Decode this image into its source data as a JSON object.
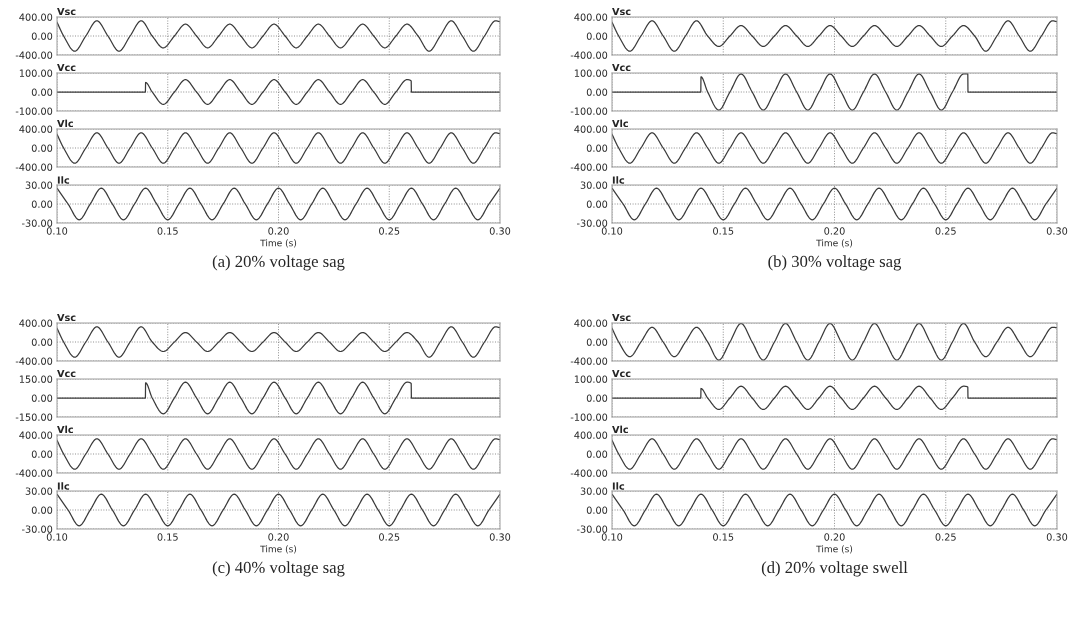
{
  "chart_data": [
    {
      "type": "line",
      "title": "Vsc",
      "tick_labels": "y",
      "grid": true,
      "line_style": "solid",
      "xlim": [
        0.1,
        0.3
      ],
      "xticks": [
        0.1,
        0.15,
        0.2,
        0.25,
        0.3
      ],
      "ylim": [
        -400,
        400
      ],
      "yticks": [
        {
          "value": 400,
          "label": "400.00"
        },
        {
          "value": 0,
          "label": "0.00"
        },
        {
          "value": -400,
          "label": "-400.00"
        }
      ],
      "x": [
        0.1,
        0.103,
        0.108,
        0.113,
        0.118,
        0.123,
        0.128,
        0.133,
        0.138,
        0.143,
        0.148,
        0.153,
        0.158,
        0.163,
        0.168,
        0.173,
        0.178,
        0.183,
        0.188,
        0.193,
        0.198,
        0.203,
        0.208,
        0.213,
        0.218,
        0.223,
        0.228,
        0.233,
        0.238,
        0.243,
        0.248,
        0.253,
        0.258,
        0.263,
        0.268,
        0.273,
        0.278,
        0.283,
        0.288,
        0.293,
        0.298,
        0.3
      ],
      "series": [
        {
          "color": "#3a3a3a",
          "values": [
            290,
            0,
            -320,
            0,
            320,
            0,
            -320,
            0,
            320,
            0,
            -250,
            0,
            250,
            0,
            -250,
            0,
            250,
            0,
            -250,
            0,
            250,
            0,
            -250,
            0,
            250,
            0,
            -250,
            0,
            250,
            0,
            -250,
            0,
            250,
            0,
            -320,
            0,
            320,
            0,
            -320,
            0,
            320,
            300
          ]
        }
      ]
    },
    {
      "type": "line",
      "title": "Vcc",
      "tick_labels": "y",
      "grid": true,
      "line_style": "solid",
      "xlim": [
        0.1,
        0.3
      ],
      "xticks": [
        0.1,
        0.15,
        0.2,
        0.25,
        0.3
      ],
      "ylim": [
        -100,
        100
      ],
      "yticks": [
        {
          "value": 100,
          "label": "100.00"
        },
        {
          "value": 0,
          "label": "0.00"
        },
        {
          "value": -100,
          "label": "-100.00"
        }
      ],
      "x": [
        0.1,
        0.1399,
        0.14,
        0.143,
        0.148,
        0.153,
        0.158,
        0.163,
        0.168,
        0.173,
        0.178,
        0.183,
        0.188,
        0.193,
        0.198,
        0.203,
        0.208,
        0.213,
        0.218,
        0.223,
        0.228,
        0.233,
        0.238,
        0.243,
        0.248,
        0.253,
        0.258,
        0.2599,
        0.26,
        0.3
      ],
      "series": [
        {
          "color": "#3a3a3a",
          "values": [
            0,
            0,
            50,
            0,
            -65,
            0,
            65,
            0,
            -65,
            0,
            65,
            0,
            -65,
            0,
            65,
            0,
            -65,
            0,
            65,
            0,
            -65,
            0,
            65,
            0,
            -65,
            0,
            65,
            58,
            0,
            0
          ]
        }
      ]
    },
    {
      "type": "line",
      "title": "Vlc",
      "tick_labels": "y",
      "grid": true,
      "line_style": "solid",
      "xlim": [
        0.1,
        0.3
      ],
      "xticks": [
        0.1,
        0.15,
        0.2,
        0.25,
        0.3
      ],
      "ylim": [
        -400,
        400
      ],
      "yticks": [
        {
          "value": 400,
          "label": "400.00"
        },
        {
          "value": 0,
          "label": "0.00"
        },
        {
          "value": -400,
          "label": "-400.00"
        }
      ],
      "x": [
        0.1,
        0.103,
        0.108,
        0.113,
        0.118,
        0.123,
        0.128,
        0.133,
        0.138,
        0.143,
        0.148,
        0.153,
        0.158,
        0.163,
        0.168,
        0.173,
        0.178,
        0.183,
        0.188,
        0.193,
        0.198,
        0.203,
        0.208,
        0.213,
        0.218,
        0.223,
        0.228,
        0.233,
        0.238,
        0.243,
        0.248,
        0.253,
        0.258,
        0.263,
        0.268,
        0.273,
        0.278,
        0.283,
        0.288,
        0.293,
        0.298,
        0.3
      ],
      "series": [
        {
          "color": "#3a3a3a",
          "values": [
            290,
            0,
            -320,
            0,
            320,
            0,
            -320,
            0,
            320,
            0,
            -320,
            0,
            320,
            0,
            -320,
            0,
            320,
            0,
            -320,
            0,
            320,
            0,
            -320,
            0,
            320,
            0,
            -320,
            0,
            320,
            0,
            -320,
            0,
            320,
            0,
            -320,
            0,
            320,
            0,
            -320,
            0,
            320,
            300
          ]
        }
      ]
    },
    {
      "type": "line",
      "title": "Ilc",
      "xlabel": "Time (s)",
      "annotations": [
        "(a) 20% voltage sag"
      ],
      "grid": true,
      "line_style": "solid",
      "xlim": [
        0.1,
        0.3
      ],
      "xticks": [
        {
          "value": 0.1,
          "label": "0.10"
        },
        {
          "value": 0.15,
          "label": "0.15"
        },
        {
          "value": 0.2,
          "label": "0.20"
        },
        {
          "value": 0.25,
          "label": "0.25"
        },
        {
          "value": 0.3,
          "label": "0.30"
        }
      ],
      "ylim": [
        -30,
        30
      ],
      "yticks": [
        {
          "value": 30,
          "label": "30.00"
        },
        {
          "value": 0,
          "label": "0.00"
        },
        {
          "value": -30,
          "label": "-30.00"
        }
      ],
      "x": [
        0.1,
        0.105,
        0.11,
        0.115,
        0.12,
        0.125,
        0.13,
        0.135,
        0.14,
        0.145,
        0.15,
        0.155,
        0.16,
        0.165,
        0.17,
        0.175,
        0.18,
        0.185,
        0.19,
        0.195,
        0.2,
        0.205,
        0.21,
        0.215,
        0.22,
        0.225,
        0.23,
        0.235,
        0.24,
        0.245,
        0.25,
        0.255,
        0.26,
        0.265,
        0.27,
        0.275,
        0.28,
        0.285,
        0.29,
        0.295,
        0.3
      ],
      "series": [
        {
          "color": "#3a3a3a",
          "values": [
            25,
            0,
            -25,
            0,
            25,
            0,
            -25,
            0,
            25,
            0,
            -25,
            0,
            25,
            0,
            -25,
            0,
            25,
            0,
            -25,
            0,
            25,
            0,
            -25,
            0,
            25,
            0,
            -25,
            0,
            25,
            0,
            -25,
            0,
            25,
            0,
            -25,
            0,
            25,
            0,
            -25,
            0,
            25
          ]
        }
      ]
    },
    {
      "type": "line",
      "title": "Vsc",
      "tick_labels": "y",
      "grid": true,
      "line_style": "solid",
      "xlim": [
        0.1,
        0.3
      ],
      "xticks": [
        0.1,
        0.15,
        0.2,
        0.25,
        0.3
      ],
      "ylim": [
        -400,
        400
      ],
      "yticks": [
        {
          "value": 400,
          "label": "400.00"
        },
        {
          "value": 0,
          "label": "0.00"
        },
        {
          "value": -400,
          "label": "-400.00"
        }
      ],
      "x": [
        0.1,
        0.103,
        0.108,
        0.113,
        0.118,
        0.123,
        0.128,
        0.133,
        0.138,
        0.143,
        0.148,
        0.153,
        0.158,
        0.163,
        0.168,
        0.173,
        0.178,
        0.183,
        0.188,
        0.193,
        0.198,
        0.203,
        0.208,
        0.213,
        0.218,
        0.223,
        0.228,
        0.233,
        0.238,
        0.243,
        0.248,
        0.253,
        0.258,
        0.263,
        0.268,
        0.273,
        0.278,
        0.283,
        0.288,
        0.293,
        0.298,
        0.3
      ],
      "series": [
        {
          "color": "#3a3a3a",
          "values": [
            290,
            0,
            -320,
            0,
            320,
            0,
            -320,
            0,
            320,
            0,
            -220,
            0,
            220,
            0,
            -220,
            0,
            220,
            0,
            -220,
            0,
            220,
            0,
            -220,
            0,
            220,
            0,
            -220,
            0,
            220,
            0,
            -220,
            0,
            220,
            0,
            -320,
            0,
            320,
            0,
            -320,
            0,
            320,
            300
          ]
        }
      ]
    },
    {
      "type": "line",
      "title": "Vcc",
      "tick_labels": "y",
      "grid": true,
      "line_style": "solid",
      "xlim": [
        0.1,
        0.3
      ],
      "xticks": [
        0.1,
        0.15,
        0.2,
        0.25,
        0.3
      ],
      "ylim": [
        -100,
        100
      ],
      "yticks": [
        {
          "value": 100,
          "label": "100.00"
        },
        {
          "value": 0,
          "label": "0.00"
        },
        {
          "value": -100,
          "label": "-100.00"
        }
      ],
      "x": [
        0.1,
        0.1399,
        0.14,
        0.143,
        0.148,
        0.153,
        0.158,
        0.163,
        0.168,
        0.173,
        0.178,
        0.183,
        0.188,
        0.193,
        0.198,
        0.203,
        0.208,
        0.213,
        0.218,
        0.223,
        0.228,
        0.233,
        0.238,
        0.243,
        0.248,
        0.253,
        0.258,
        0.2599,
        0.26,
        0.3
      ],
      "series": [
        {
          "color": "#3a3a3a",
          "values": [
            0,
            0,
            80,
            0,
            -95,
            0,
            95,
            0,
            -95,
            0,
            95,
            0,
            -95,
            0,
            95,
            0,
            -95,
            0,
            95,
            0,
            -95,
            0,
            95,
            0,
            -95,
            0,
            95,
            95,
            0,
            0
          ]
        }
      ]
    },
    {
      "type": "line",
      "title": "Vlc",
      "tick_labels": "y",
      "grid": true,
      "line_style": "solid",
      "xlim": [
        0.1,
        0.3
      ],
      "xticks": [
        0.1,
        0.15,
        0.2,
        0.25,
        0.3
      ],
      "ylim": [
        -400,
        400
      ],
      "yticks": [
        {
          "value": 400,
          "label": "400.00"
        },
        {
          "value": 0,
          "label": "0.00"
        },
        {
          "value": -400,
          "label": "-400.00"
        }
      ],
      "x": [
        0.1,
        0.103,
        0.108,
        0.113,
        0.118,
        0.123,
        0.128,
        0.133,
        0.138,
        0.143,
        0.148,
        0.153,
        0.158,
        0.163,
        0.168,
        0.173,
        0.178,
        0.183,
        0.188,
        0.193,
        0.198,
        0.203,
        0.208,
        0.213,
        0.218,
        0.223,
        0.228,
        0.233,
        0.238,
        0.243,
        0.248,
        0.253,
        0.258,
        0.263,
        0.268,
        0.273,
        0.278,
        0.283,
        0.288,
        0.293,
        0.298,
        0.3
      ],
      "series": [
        {
          "color": "#3a3a3a",
          "values": [
            290,
            0,
            -320,
            0,
            320,
            0,
            -320,
            0,
            320,
            0,
            -320,
            0,
            320,
            0,
            -320,
            0,
            320,
            0,
            -320,
            0,
            320,
            0,
            -320,
            0,
            320,
            0,
            -320,
            0,
            320,
            0,
            -320,
            0,
            320,
            0,
            -320,
            0,
            320,
            0,
            -320,
            0,
            320,
            300
          ]
        }
      ]
    },
    {
      "type": "line",
      "title": "Ilc",
      "xlabel": "Time (s)",
      "annotations": [
        "(b) 30% voltage sag"
      ],
      "grid": true,
      "line_style": "solid",
      "xlim": [
        0.1,
        0.3
      ],
      "xticks": [
        {
          "value": 0.1,
          "label": "0.10"
        },
        {
          "value": 0.15,
          "label": "0.15"
        },
        {
          "value": 0.2,
          "label": "0.20"
        },
        {
          "value": 0.25,
          "label": "0.25"
        },
        {
          "value": 0.3,
          "label": "0.30"
        }
      ],
      "ylim": [
        -30,
        30
      ],
      "yticks": [
        {
          "value": 30,
          "label": "30.00"
        },
        {
          "value": 0,
          "label": "0.00"
        },
        {
          "value": -30,
          "label": "-30.00"
        }
      ],
      "x": [
        0.1,
        0.105,
        0.11,
        0.115,
        0.12,
        0.125,
        0.13,
        0.135,
        0.14,
        0.145,
        0.15,
        0.155,
        0.16,
        0.165,
        0.17,
        0.175,
        0.18,
        0.185,
        0.19,
        0.195,
        0.2,
        0.205,
        0.21,
        0.215,
        0.22,
        0.225,
        0.23,
        0.235,
        0.24,
        0.245,
        0.25,
        0.255,
        0.26,
        0.265,
        0.27,
        0.275,
        0.28,
        0.285,
        0.29,
        0.295,
        0.3
      ],
      "series": [
        {
          "color": "#3a3a3a",
          "values": [
            25,
            0,
            -25,
            0,
            25,
            0,
            -25,
            0,
            25,
            0,
            -25,
            0,
            25,
            0,
            -25,
            0,
            25,
            0,
            -25,
            0,
            25,
            0,
            -25,
            0,
            25,
            0,
            -25,
            0,
            25,
            0,
            -25,
            0,
            25,
            0,
            -25,
            0,
            25,
            0,
            -25,
            0,
            25
          ]
        }
      ]
    },
    {
      "type": "line",
      "title": "Vsc",
      "tick_labels": "y",
      "grid": true,
      "line_style": "solid",
      "xlim": [
        0.1,
        0.3
      ],
      "xticks": [
        0.1,
        0.15,
        0.2,
        0.25,
        0.3
      ],
      "ylim": [
        -400,
        400
      ],
      "yticks": [
        {
          "value": 400,
          "label": "400.00"
        },
        {
          "value": 0,
          "label": "0.00"
        },
        {
          "value": -400,
          "label": "-400.00"
        }
      ],
      "x": [
        0.1,
        0.103,
        0.108,
        0.113,
        0.118,
        0.123,
        0.128,
        0.133,
        0.138,
        0.143,
        0.148,
        0.153,
        0.158,
        0.163,
        0.168,
        0.173,
        0.178,
        0.183,
        0.188,
        0.193,
        0.198,
        0.203,
        0.208,
        0.213,
        0.218,
        0.223,
        0.228,
        0.233,
        0.238,
        0.243,
        0.248,
        0.253,
        0.258,
        0.263,
        0.268,
        0.273,
        0.278,
        0.283,
        0.288,
        0.293,
        0.298,
        0.3
      ],
      "series": [
        {
          "color": "#3a3a3a",
          "values": [
            290,
            0,
            -320,
            0,
            320,
            0,
            -320,
            0,
            320,
            0,
            -200,
            0,
            200,
            0,
            -200,
            0,
            200,
            0,
            -200,
            0,
            200,
            0,
            -200,
            0,
            200,
            0,
            -200,
            0,
            200,
            0,
            -200,
            0,
            200,
            0,
            -320,
            0,
            320,
            0,
            -320,
            0,
            320,
            300
          ]
        }
      ]
    },
    {
      "type": "line",
      "title": "Vcc",
      "tick_labels": "y",
      "grid": true,
      "line_style": "solid",
      "xlim": [
        0.1,
        0.3
      ],
      "xticks": [
        0.1,
        0.15,
        0.2,
        0.25,
        0.3
      ],
      "ylim": [
        -150,
        150
      ],
      "yticks": [
        {
          "value": 150,
          "label": "150.00"
        },
        {
          "value": 0,
          "label": "0.00"
        },
        {
          "value": -150,
          "label": "-150.00"
        }
      ],
      "x": [
        0.1,
        0.1399,
        0.14,
        0.143,
        0.148,
        0.153,
        0.158,
        0.163,
        0.168,
        0.173,
        0.178,
        0.183,
        0.188,
        0.193,
        0.198,
        0.203,
        0.208,
        0.213,
        0.218,
        0.223,
        0.228,
        0.233,
        0.238,
        0.243,
        0.248,
        0.253,
        0.258,
        0.2599,
        0.26,
        0.3
      ],
      "series": [
        {
          "color": "#3a3a3a",
          "values": [
            0,
            0,
            120,
            0,
            -125,
            0,
            125,
            0,
            -125,
            0,
            125,
            0,
            -125,
            0,
            125,
            0,
            -125,
            0,
            125,
            0,
            -125,
            0,
            125,
            0,
            -125,
            0,
            125,
            115,
            0,
            0
          ]
        }
      ]
    },
    {
      "type": "line",
      "title": "Vlc",
      "tick_labels": "y",
      "grid": true,
      "line_style": "solid",
      "xlim": [
        0.1,
        0.3
      ],
      "xticks": [
        0.1,
        0.15,
        0.2,
        0.25,
        0.3
      ],
      "ylim": [
        -400,
        400
      ],
      "yticks": [
        {
          "value": 400,
          "label": "400.00"
        },
        {
          "value": 0,
          "label": "0.00"
        },
        {
          "value": -400,
          "label": "-400.00"
        }
      ],
      "x": [
        0.1,
        0.103,
        0.108,
        0.113,
        0.118,
        0.123,
        0.128,
        0.133,
        0.138,
        0.143,
        0.148,
        0.153,
        0.158,
        0.163,
        0.168,
        0.173,
        0.178,
        0.183,
        0.188,
        0.193,
        0.198,
        0.203,
        0.208,
        0.213,
        0.218,
        0.223,
        0.228,
        0.233,
        0.238,
        0.243,
        0.248,
        0.253,
        0.258,
        0.263,
        0.268,
        0.273,
        0.278,
        0.283,
        0.288,
        0.293,
        0.298,
        0.3
      ],
      "series": [
        {
          "color": "#3a3a3a",
          "values": [
            290,
            0,
            -320,
            0,
            320,
            0,
            -320,
            0,
            320,
            0,
            -320,
            0,
            320,
            0,
            -320,
            0,
            320,
            0,
            -320,
            0,
            320,
            0,
            -320,
            0,
            320,
            0,
            -320,
            0,
            320,
            0,
            -320,
            0,
            320,
            0,
            -320,
            0,
            320,
            0,
            -320,
            0,
            320,
            300
          ]
        }
      ]
    },
    {
      "type": "line",
      "title": "Ilc",
      "xlabel": "Time (s)",
      "annotations": [
        "(c) 40% voltage sag"
      ],
      "grid": true,
      "line_style": "solid",
      "xlim": [
        0.1,
        0.3
      ],
      "xticks": [
        {
          "value": 0.1,
          "label": "0.10"
        },
        {
          "value": 0.15,
          "label": "0.15"
        },
        {
          "value": 0.2,
          "label": "0.20"
        },
        {
          "value": 0.25,
          "label": "0.25"
        },
        {
          "value": 0.3,
          "label": "0.30"
        }
      ],
      "ylim": [
        -30,
        30
      ],
      "yticks": [
        {
          "value": 30,
          "label": "30.00"
        },
        {
          "value": 0,
          "label": "0.00"
        },
        {
          "value": -30,
          "label": "-30.00"
        }
      ],
      "x": [
        0.1,
        0.105,
        0.11,
        0.115,
        0.12,
        0.125,
        0.13,
        0.135,
        0.14,
        0.145,
        0.15,
        0.155,
        0.16,
        0.165,
        0.17,
        0.175,
        0.18,
        0.185,
        0.19,
        0.195,
        0.2,
        0.205,
        0.21,
        0.215,
        0.22,
        0.225,
        0.23,
        0.235,
        0.24,
        0.245,
        0.25,
        0.255,
        0.26,
        0.265,
        0.27,
        0.275,
        0.28,
        0.285,
        0.29,
        0.295,
        0.3
      ],
      "series": [
        {
          "color": "#3a3a3a",
          "values": [
            25,
            0,
            -25,
            0,
            25,
            0,
            -25,
            0,
            25,
            0,
            -25,
            0,
            25,
            0,
            -25,
            0,
            25,
            0,
            -25,
            0,
            25,
            0,
            -25,
            0,
            25,
            0,
            -25,
            0,
            25,
            0,
            -25,
            0,
            25,
            0,
            -25,
            0,
            25,
            0,
            -25,
            0,
            25
          ]
        }
      ]
    },
    {
      "type": "line",
      "title": "Vsc",
      "tick_labels": "y",
      "grid": true,
      "line_style": "solid",
      "xlim": [
        0.1,
        0.3
      ],
      "xticks": [
        0.1,
        0.15,
        0.2,
        0.25,
        0.3
      ],
      "ylim": [
        -400,
        400
      ],
      "yticks": [
        {
          "value": 400,
          "label": "400.00"
        },
        {
          "value": 0,
          "label": "0.00"
        },
        {
          "value": -400,
          "label": "-400.00"
        }
      ],
      "x": [
        0.1,
        0.103,
        0.108,
        0.113,
        0.118,
        0.123,
        0.128,
        0.133,
        0.138,
        0.143,
        0.148,
        0.153,
        0.158,
        0.163,
        0.168,
        0.173,
        0.178,
        0.183,
        0.188,
        0.193,
        0.198,
        0.203,
        0.208,
        0.213,
        0.218,
        0.223,
        0.228,
        0.233,
        0.238,
        0.243,
        0.248,
        0.253,
        0.258,
        0.263,
        0.268,
        0.273,
        0.278,
        0.283,
        0.288,
        0.293,
        0.298,
        0.3
      ],
      "series": [
        {
          "color": "#3a3a3a",
          "values": [
            290,
            0,
            -310,
            0,
            310,
            0,
            -310,
            0,
            310,
            0,
            -380,
            0,
            390,
            0,
            -380,
            0,
            390,
            0,
            -380,
            0,
            390,
            0,
            -380,
            0,
            390,
            0,
            -380,
            0,
            390,
            0,
            -380,
            0,
            390,
            0,
            -310,
            0,
            310,
            0,
            -310,
            0,
            310,
            300
          ]
        }
      ]
    },
    {
      "type": "line",
      "title": "Vcc",
      "tick_labels": "y",
      "grid": true,
      "line_style": "solid",
      "xlim": [
        0.1,
        0.3
      ],
      "xticks": [
        0.1,
        0.15,
        0.2,
        0.25,
        0.3
      ],
      "ylim": [
        -100,
        100
      ],
      "yticks": [
        {
          "value": 100,
          "label": "100.00"
        },
        {
          "value": 0,
          "label": "0.00"
        },
        {
          "value": -100,
          "label": "-100.00"
        }
      ],
      "x": [
        0.1,
        0.1399,
        0.14,
        0.143,
        0.148,
        0.153,
        0.158,
        0.163,
        0.168,
        0.173,
        0.178,
        0.183,
        0.188,
        0.193,
        0.198,
        0.203,
        0.208,
        0.213,
        0.218,
        0.223,
        0.228,
        0.233,
        0.238,
        0.243,
        0.248,
        0.253,
        0.258,
        0.2599,
        0.26,
        0.3
      ],
      "series": [
        {
          "color": "#3a3a3a",
          "values": [
            0,
            0,
            50,
            0,
            -60,
            0,
            62,
            0,
            -60,
            0,
            62,
            0,
            -60,
            0,
            62,
            0,
            -60,
            0,
            62,
            0,
            -60,
            0,
            62,
            0,
            -60,
            0,
            62,
            58,
            0,
            0
          ]
        }
      ]
    },
    {
      "type": "line",
      "title": "Vlc",
      "tick_labels": "y",
      "grid": true,
      "line_style": "solid",
      "xlim": [
        0.1,
        0.3
      ],
      "xticks": [
        0.1,
        0.15,
        0.2,
        0.25,
        0.3
      ],
      "ylim": [
        -400,
        400
      ],
      "yticks": [
        {
          "value": 400,
          "label": "400.00"
        },
        {
          "value": 0,
          "label": "0.00"
        },
        {
          "value": -400,
          "label": "-400.00"
        }
      ],
      "x": [
        0.1,
        0.103,
        0.108,
        0.113,
        0.118,
        0.123,
        0.128,
        0.133,
        0.138,
        0.143,
        0.148,
        0.153,
        0.158,
        0.163,
        0.168,
        0.173,
        0.178,
        0.183,
        0.188,
        0.193,
        0.198,
        0.203,
        0.208,
        0.213,
        0.218,
        0.223,
        0.228,
        0.233,
        0.238,
        0.243,
        0.248,
        0.253,
        0.258,
        0.263,
        0.268,
        0.273,
        0.278,
        0.283,
        0.288,
        0.293,
        0.298,
        0.3
      ],
      "series": [
        {
          "color": "#3a3a3a",
          "values": [
            290,
            0,
            -320,
            0,
            320,
            0,
            -320,
            0,
            320,
            0,
            -320,
            0,
            320,
            0,
            -320,
            0,
            320,
            0,
            -320,
            0,
            320,
            0,
            -320,
            0,
            320,
            0,
            -320,
            0,
            320,
            0,
            -320,
            0,
            320,
            0,
            -320,
            0,
            320,
            0,
            -320,
            0,
            320,
            300
          ]
        }
      ]
    },
    {
      "type": "line",
      "title": "Ilc",
      "xlabel": "Time (s)",
      "annotations": [
        "(d) 20% voltage swell"
      ],
      "grid": true,
      "line_style": "solid",
      "xlim": [
        0.1,
        0.3
      ],
      "xticks": [
        {
          "value": 0.1,
          "label": "0.10"
        },
        {
          "value": 0.15,
          "label": "0.15"
        },
        {
          "value": 0.2,
          "label": "0.20"
        },
        {
          "value": 0.25,
          "label": "0.25"
        },
        {
          "value": 0.3,
          "label": "0.30"
        }
      ],
      "ylim": [
        -30,
        30
      ],
      "yticks": [
        {
          "value": 30,
          "label": "30.00"
        },
        {
          "value": 0,
          "label": "0.00"
        },
        {
          "value": -30,
          "label": "-30.00"
        }
      ],
      "x": [
        0.1,
        0.105,
        0.11,
        0.115,
        0.12,
        0.125,
        0.13,
        0.135,
        0.14,
        0.145,
        0.15,
        0.155,
        0.16,
        0.165,
        0.17,
        0.175,
        0.18,
        0.185,
        0.19,
        0.195,
        0.2,
        0.205,
        0.21,
        0.215,
        0.22,
        0.225,
        0.23,
        0.235,
        0.24,
        0.245,
        0.25,
        0.255,
        0.26,
        0.265,
        0.27,
        0.275,
        0.28,
        0.285,
        0.29,
        0.295,
        0.3
      ],
      "series": [
        {
          "color": "#3a3a3a",
          "values": [
            25,
            0,
            -25,
            0,
            25,
            0,
            -25,
            0,
            25,
            0,
            -25,
            0,
            25,
            0,
            -25,
            0,
            25,
            0,
            -25,
            0,
            25,
            0,
            -25,
            0,
            25,
            0,
            -25,
            0,
            25,
            0,
            -25,
            0,
            25,
            0,
            -25,
            0,
            25,
            0,
            -25,
            0,
            25
          ]
        }
      ]
    }
  ]
}
